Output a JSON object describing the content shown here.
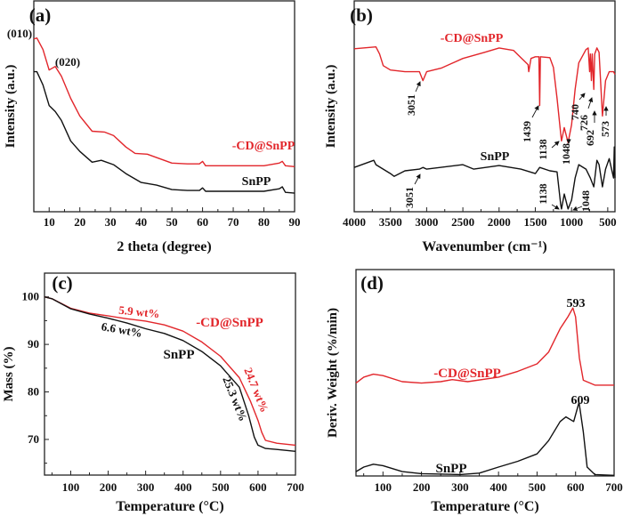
{
  "colors": {
    "red": "#e2262b",
    "black": "#111111"
  },
  "chart_data": [
    {
      "panel_label": "(a)",
      "type": "line",
      "xlabel": "2 theta (degree)",
      "ylabel": "Intensity (a.u.)",
      "xlim": [
        5,
        90
      ],
      "ylim": [
        0,
        100
      ],
      "xticks": [
        10,
        20,
        30,
        40,
        50,
        60,
        70,
        80,
        90
      ],
      "yticks": [],
      "series": [
        {
          "name": "-CD@SnPP",
          "color": "#e2262b",
          "x": [
            5,
            6,
            8,
            10,
            12,
            14,
            17,
            20,
            24,
            28,
            31,
            35,
            38,
            42,
            46,
            50,
            55,
            59,
            60,
            61,
            70,
            80,
            85,
            86,
            87,
            90
          ],
          "y": [
            81.9,
            82.4,
            76.9,
            67.2,
            68.9,
            64.3,
            53.8,
            45.4,
            38.2,
            37.8,
            36.1,
            30.7,
            27.7,
            27.3,
            25.2,
            23.1,
            22.7,
            22.7,
            23.9,
            21.8,
            21.8,
            21.8,
            23.1,
            23.9,
            21.8,
            21.4
          ]
        },
        {
          "name": "SnPP",
          "color": "#111111",
          "x": [
            5,
            6,
            8,
            10,
            12,
            14,
            17,
            20,
            24,
            27,
            31,
            35,
            40,
            45,
            50,
            55,
            59,
            60,
            61,
            70,
            80,
            85,
            86,
            87,
            90
          ],
          "y": [
            66.4,
            66.4,
            60.1,
            50.4,
            47.5,
            43.3,
            33.6,
            28.6,
            23.5,
            24.4,
            22.3,
            18.1,
            13.9,
            12.6,
            10.5,
            10.1,
            10.1,
            11.3,
            9.7,
            9.7,
            9.7,
            10.9,
            11.8,
            9.2,
            8.8
          ]
        }
      ],
      "annotations": [
        {
          "text": "(010)",
          "color": "#111111"
        },
        {
          "text": "(020)",
          "color": "#111111"
        },
        {
          "text": "-CD@SnPP",
          "color": "#e2262b"
        },
        {
          "text": "SnPP",
          "color": "#111111"
        }
      ]
    },
    {
      "panel_label": "(b)",
      "type": "line",
      "xlabel": "Wavenumber (cm⁻¹)",
      "ylabel": "Intensity (a.u.)",
      "xlim": [
        4000,
        400
      ],
      "ylim": [
        0,
        100
      ],
      "xticks": [
        4000,
        3500,
        3000,
        2500,
        2000,
        1500,
        1000,
        500
      ],
      "yticks": [],
      "series": [
        {
          "name": "-CD@SnPP",
          "color": "#e2262b",
          "x": [
            4000,
            3700,
            3650,
            3600,
            3500,
            3300,
            3100,
            3051,
            3000,
            2800,
            2500,
            2200,
            2000,
            1800,
            1700,
            1600,
            1590,
            1560,
            1500,
            1450,
            1439,
            1430,
            1300,
            1250,
            1200,
            1150,
            1138,
            1100,
            1048,
            1000,
            950,
            900,
            800,
            770,
            750,
            740,
            726,
            715,
            692,
            680,
            650,
            620,
            573,
            530,
            480,
            420,
            400
          ],
          "y": [
            77.3,
            78.2,
            74.8,
            69.3,
            67.2,
            66.4,
            66.4,
            62.2,
            66.4,
            68.1,
            72.7,
            75.6,
            77.7,
            76.5,
            73.1,
            69.8,
            66.4,
            72.7,
            73.5,
            73.5,
            50.4,
            73.5,
            73.1,
            68.5,
            53.8,
            37.0,
            33.6,
            39.9,
            32.8,
            41.2,
            58.0,
            70.6,
            76.9,
            77.7,
            66.4,
            74.8,
            62.2,
            74.8,
            58.0,
            74.8,
            77.7,
            75.6,
            45.4,
            62.2,
            66.4,
            66.4,
            65.1
          ]
        },
        {
          "name": "SnPP",
          "color": "#111111",
          "x": [
            4000,
            3730,
            3700,
            3500,
            3450,
            3300,
            3100,
            3051,
            3000,
            2500,
            2350,
            2000,
            1700,
            1500,
            1440,
            1300,
            1200,
            1150,
            1138,
            1100,
            1048,
            1000,
            950,
            900,
            800,
            740,
            692,
            650,
            620,
            573,
            530,
            480,
            420,
            410,
            400
          ],
          "y": [
            21.0,
            24.4,
            22.3,
            18.1,
            16.8,
            19.4,
            20.2,
            21.0,
            20.2,
            22.3,
            20.2,
            21.9,
            20.2,
            18.1,
            21.0,
            19.4,
            18.9,
            3.4,
            1.3,
            8.4,
            1.3,
            5.5,
            16.0,
            22.3,
            20.2,
            16.0,
            11.8,
            24.4,
            22.3,
            11.8,
            20.2,
            25.2,
            16.0,
            30.7,
            16.0
          ]
        }
      ],
      "annotations": [
        {
          "text": "-CD@SnPP",
          "color": "#e2262b"
        },
        {
          "text": "SnPP",
          "color": "#111111"
        },
        {
          "text": "3051",
          "color": "#111111"
        },
        {
          "text": "1439",
          "color": "#111111"
        },
        {
          "text": "1138",
          "color": "#111111"
        },
        {
          "text": "1048",
          "color": "#111111"
        },
        {
          "text": "740",
          "color": "#111111"
        },
        {
          "text": "726",
          "color": "#111111"
        },
        {
          "text": "692",
          "color": "#111111"
        },
        {
          "text": "573",
          "color": "#111111"
        },
        {
          "text": "3051",
          "color": "#111111"
        },
        {
          "text": "1138",
          "color": "#111111"
        },
        {
          "text": "1048",
          "color": "#111111"
        }
      ]
    },
    {
      "panel_label": "(c)",
      "type": "line",
      "xlabel": "Temperature (°C)",
      "ylabel": "Mass (%)",
      "xlim": [
        30,
        700
      ],
      "ylim": [
        62.5,
        105
      ],
      "xticks": [
        100,
        200,
        300,
        400,
        500,
        600,
        700
      ],
      "yticks": [
        70,
        80,
        90,
        100
      ],
      "series": [
        {
          "name": "-CD@SnPP",
          "color": "#e2262b",
          "x": [
            30,
            50,
            100,
            150,
            200,
            250,
            300,
            350,
            400,
            450,
            500,
            550,
            580,
            600,
            610,
            620,
            650,
            700
          ],
          "y": [
            100,
            99.6,
            97.6,
            96.6,
            96.0,
            95.4,
            94.9,
            94.1,
            92.8,
            90.5,
            87.5,
            83,
            78,
            74,
            71.5,
            69.8,
            69.2,
            68.8
          ]
        },
        {
          "name": "SnPP",
          "color": "#111111",
          "x": [
            30,
            50,
            100,
            150,
            200,
            250,
            300,
            350,
            400,
            450,
            500,
            550,
            575,
            590,
            600,
            620,
            650,
            700
          ],
          "y": [
            100,
            99.6,
            97.5,
            96.4,
            95.5,
            94.5,
            93.3,
            92.3,
            90.8,
            88.5,
            85.5,
            81,
            75,
            70.5,
            68.8,
            68.1,
            67.9,
            67.5
          ]
        }
      ],
      "annotations": [
        {
          "text": "5.9 wt%",
          "color": "#e2262b"
        },
        {
          "text": "6.6 wt%",
          "color": "#111111"
        },
        {
          "text": "-CD@SnPP",
          "color": "#e2262b"
        },
        {
          "text": "SnPP",
          "color": "#111111"
        },
        {
          "text": "24.7 wt%",
          "color": "#e2262b"
        },
        {
          "text": "25.3 wt%",
          "color": "#111111"
        }
      ]
    },
    {
      "panel_label": "(d)",
      "type": "line",
      "xlabel": "Temperature (°C)",
      "ylabel": "Deriv. Weight (%/min)",
      "xlim": [
        30,
        700
      ],
      "ylim": [
        0,
        100
      ],
      "xticks": [
        100,
        200,
        300,
        400,
        500,
        600,
        700
      ],
      "yticks": [],
      "series": [
        {
          "name": "-CD@SnPP",
          "color": "#e2262b",
          "x": [
            30,
            50,
            75,
            100,
            150,
            200,
            250,
            280,
            320,
            400,
            450,
            500,
            530,
            560,
            580,
            593,
            600,
            610,
            620,
            650,
            700
          ],
          "y": [
            45,
            47.9,
            49.3,
            48.6,
            45.7,
            45,
            45.7,
            46.7,
            45.7,
            47.9,
            50.7,
            54.3,
            60,
            71.4,
            77.1,
            81.4,
            77.1,
            57.1,
            46.4,
            44,
            44
          ]
        },
        {
          "name": "SnPP",
          "color": "#111111",
          "x": [
            30,
            50,
            75,
            100,
            150,
            200,
            300,
            350,
            400,
            450,
            500,
            530,
            560,
            575,
            595,
            609,
            620,
            630,
            650,
            700
          ],
          "y": [
            2.1,
            4.3,
            5.7,
            5,
            2.1,
            1.1,
            0.7,
            1.4,
            4.3,
            7.1,
            10.7,
            17.1,
            26.4,
            28.6,
            26.4,
            35.7,
            21.4,
            4.3,
            0.7,
            0.3
          ]
        }
      ],
      "annotations": [
        {
          "text": "593",
          "color": "#111111"
        },
        {
          "text": "609",
          "color": "#111111"
        },
        {
          "text": "-CD@SnPP",
          "color": "#e2262b"
        },
        {
          "text": "SnPP",
          "color": "#111111"
        }
      ]
    }
  ]
}
